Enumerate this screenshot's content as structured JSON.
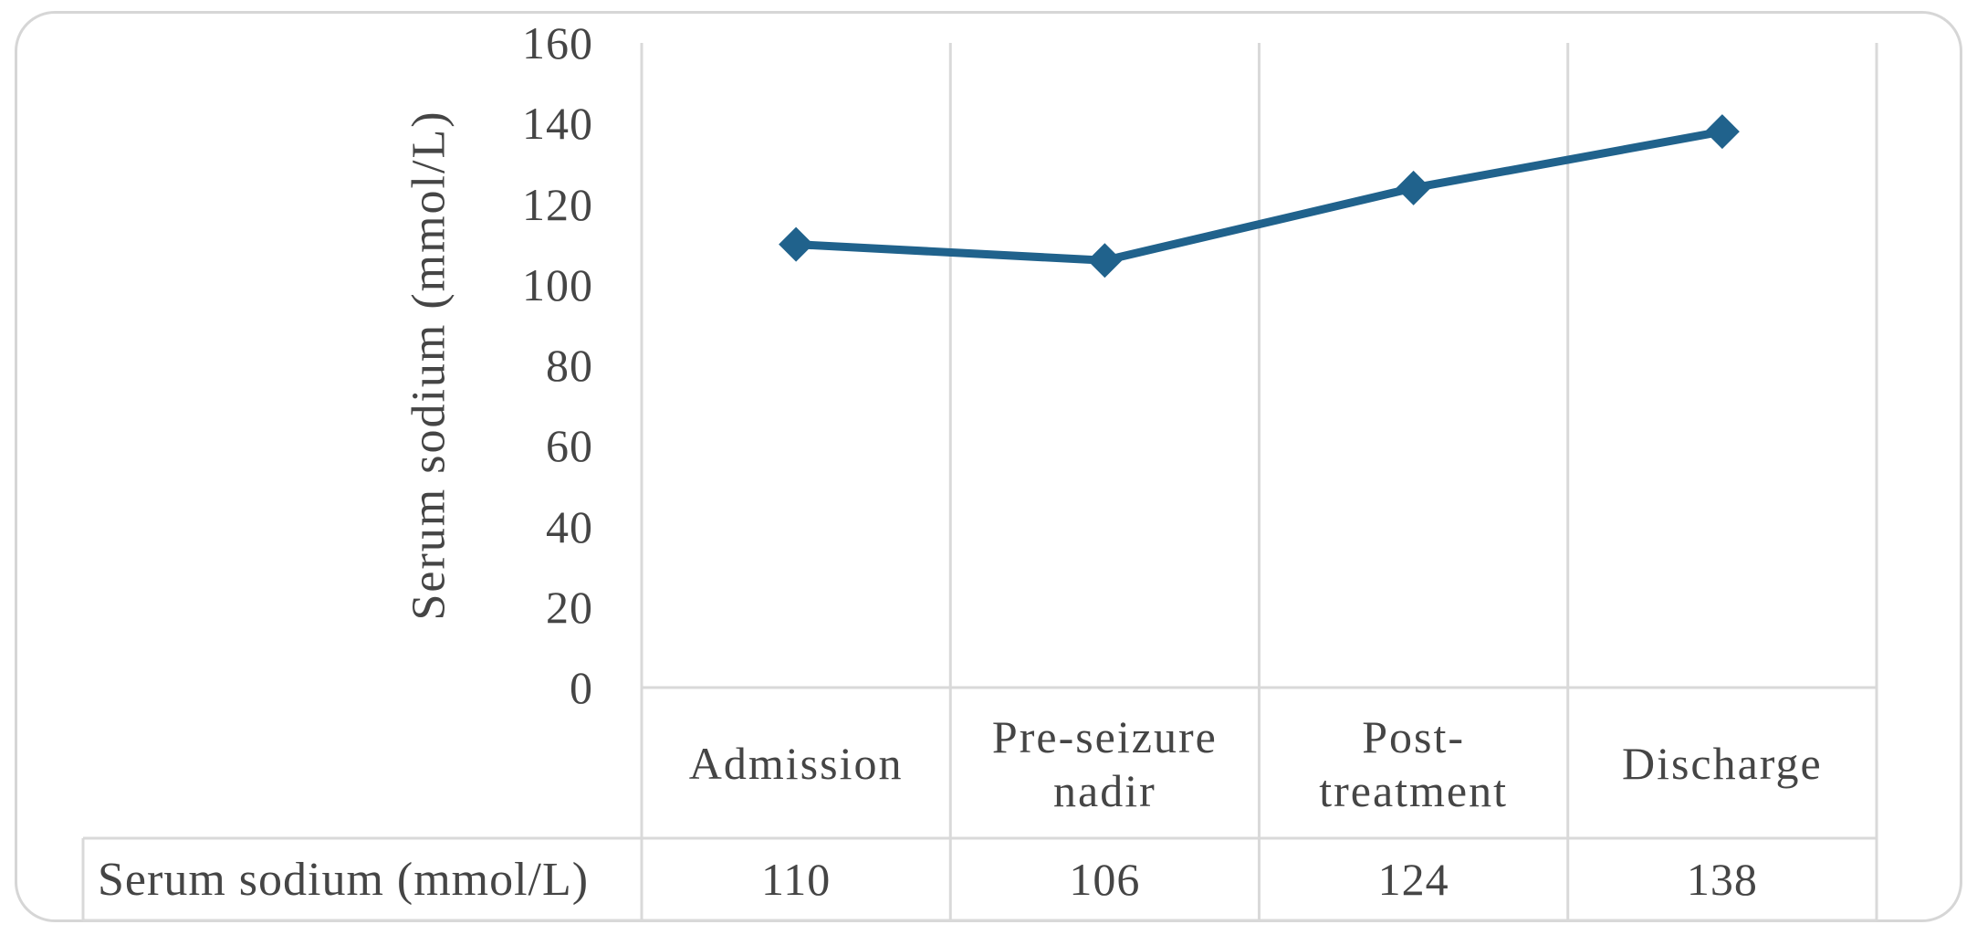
{
  "chart_data": {
    "type": "line",
    "title": "",
    "categories": [
      "Admission",
      "Pre-seizure nadir",
      "Post-treatment",
      "Discharge"
    ],
    "series": [
      {
        "name": "Serum sodium (mmol/L)",
        "values": [
          110,
          106,
          124,
          138
        ]
      }
    ],
    "xlabel": "",
    "ylabel": "Serum sodium (mmol/L)",
    "ylim": [
      0,
      160
    ],
    "ytick_step": 20,
    "yticks": [
      160,
      140,
      120,
      100,
      80,
      60,
      40,
      20,
      0
    ],
    "grid": "vertical-only",
    "legend_position": "none",
    "marker_shape": "diamond",
    "data_table": {
      "row_label": "Serum sodium (mmol/L)",
      "values": [
        "110",
        "106",
        "124",
        "138"
      ]
    },
    "colors": {
      "series": "#20628c",
      "gridline": "#d9d9d9",
      "frame": "#d6d6d6",
      "text": "#454545"
    }
  }
}
